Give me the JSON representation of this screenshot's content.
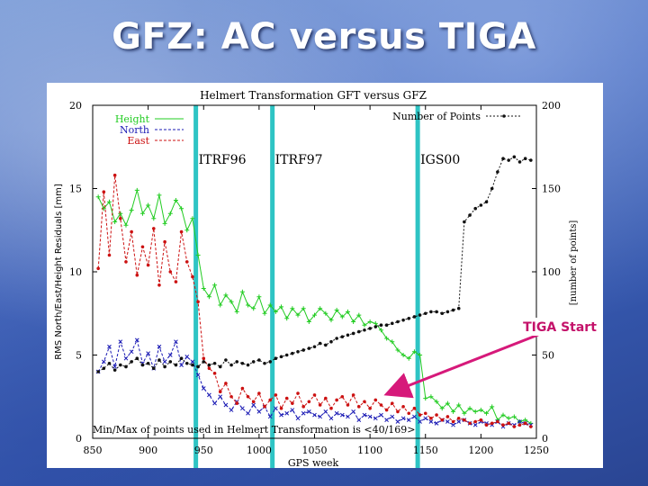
{
  "slide": {
    "title": "GFZ: AC versus TIGA",
    "callout": "TIGA Start"
  },
  "chart_data": {
    "type": "line",
    "title": "Helmert Transformation GFT versus GFZ",
    "xlabel": "GPS week",
    "ylabel": "RMS North/East/Height Residuals [mm]",
    "y2label": "[number of points]",
    "xlim": [
      850,
      1250
    ],
    "ylim": [
      0,
      20
    ],
    "y2lim": [
      0,
      200
    ],
    "xticks": [
      850,
      900,
      950,
      1000,
      1050,
      1100,
      1150,
      1200,
      1250
    ],
    "yticks": [
      0,
      5,
      10,
      15,
      20
    ],
    "ytick_labels": [
      "0",
      "5",
      "10",
      "15",
      "20"
    ],
    "y2ticks": [
      0,
      50,
      100,
      150,
      200
    ],
    "annotation": "Min/Max of points used in Helmert Transformation is <40/169>",
    "frame_markers": [
      {
        "label": "ITRF96",
        "week": 943
      },
      {
        "label": "ITRF97",
        "week": 1012
      },
      {
        "label": "IGS00",
        "week": 1143
      }
    ],
    "tiga_start_week": 1113,
    "series": [
      {
        "name": "Height",
        "color": "#22cc22",
        "marker": "+",
        "x": [
          855,
          860,
          865,
          870,
          875,
          880,
          885,
          890,
          895,
          900,
          905,
          910,
          915,
          920,
          925,
          930,
          935,
          940,
          945,
          950,
          955,
          960,
          965,
          970,
          975,
          980,
          985,
          990,
          995,
          1000,
          1005,
          1010,
          1015,
          1020,
          1025,
          1030,
          1035,
          1040,
          1045,
          1050,
          1055,
          1060,
          1065,
          1070,
          1075,
          1080,
          1085,
          1090,
          1095,
          1100,
          1105,
          1110,
          1115,
          1120,
          1125,
          1130,
          1135,
          1140,
          1145,
          1150,
          1155,
          1160,
          1165,
          1170,
          1175,
          1180,
          1185,
          1190,
          1195,
          1200,
          1205,
          1210,
          1215,
          1220,
          1225,
          1230,
          1235,
          1240,
          1245
        ],
        "y": [
          14.5,
          13.8,
          14.2,
          13.0,
          13.5,
          12.8,
          13.7,
          14.9,
          13.5,
          14.0,
          13.2,
          14.6,
          12.9,
          13.5,
          14.3,
          13.8,
          12.5,
          13.2,
          11.0,
          9.0,
          8.5,
          9.2,
          8.0,
          8.6,
          8.2,
          7.6,
          8.8,
          8.0,
          7.8,
          8.5,
          7.5,
          8.0,
          7.6,
          7.9,
          7.2,
          7.8,
          7.4,
          7.8,
          7.0,
          7.4,
          7.8,
          7.5,
          7.1,
          7.7,
          7.3,
          7.6,
          7.0,
          7.4,
          6.8,
          7.0,
          6.9,
          6.5,
          6.0,
          5.8,
          5.3,
          5.0,
          4.8,
          5.2,
          5.0,
          2.4,
          2.5,
          2.2,
          1.8,
          2.1,
          1.6,
          2.0,
          1.5,
          1.8,
          1.6,
          1.7,
          1.5,
          1.9,
          1.1,
          1.4,
          1.2,
          1.3,
          1.0,
          1.1,
          0.9
        ]
      },
      {
        "name": "North",
        "color": "#1a1ab4",
        "marker": "x",
        "x": [
          855,
          860,
          865,
          870,
          875,
          880,
          885,
          890,
          895,
          900,
          905,
          910,
          915,
          920,
          925,
          930,
          935,
          940,
          945,
          950,
          955,
          960,
          965,
          970,
          975,
          980,
          985,
          990,
          995,
          1000,
          1005,
          1010,
          1015,
          1020,
          1025,
          1030,
          1035,
          1040,
          1045,
          1050,
          1055,
          1060,
          1065,
          1070,
          1075,
          1080,
          1085,
          1090,
          1095,
          1100,
          1105,
          1110,
          1115,
          1120,
          1125,
          1130,
          1135,
          1140,
          1145,
          1150,
          1155,
          1160,
          1165,
          1170,
          1175,
          1180,
          1185,
          1190,
          1195,
          1200,
          1205,
          1210,
          1215,
          1220,
          1225,
          1230,
          1235,
          1240,
          1245
        ],
        "y": [
          4.0,
          4.6,
          5.5,
          4.3,
          5.8,
          4.8,
          5.2,
          5.9,
          4.5,
          5.1,
          4.2,
          5.5,
          4.6,
          5.0,
          5.8,
          4.4,
          4.9,
          4.6,
          3.8,
          3.0,
          2.6,
          2.1,
          2.5,
          2.0,
          1.7,
          2.2,
          1.8,
          1.5,
          2.0,
          1.6,
          1.9,
          1.3,
          1.8,
          1.4,
          1.5,
          1.7,
          1.2,
          1.5,
          1.6,
          1.4,
          1.3,
          1.6,
          1.2,
          1.5,
          1.4,
          1.3,
          1.6,
          1.1,
          1.4,
          1.3,
          1.2,
          1.4,
          1.1,
          1.3,
          1.0,
          1.2,
          1.1,
          1.3,
          1.0,
          1.2,
          1.0,
          0.9,
          1.1,
          1.0,
          0.8,
          1.0,
          1.1,
          0.9,
          0.8,
          1.0,
          0.9,
          0.8,
          1.0,
          0.7,
          0.9,
          0.8,
          1.0,
          0.9,
          0.8
        ]
      },
      {
        "name": "East",
        "color": "#cc1111",
        "marker": "dot",
        "x": [
          855,
          860,
          865,
          870,
          875,
          880,
          885,
          890,
          895,
          900,
          905,
          910,
          915,
          920,
          925,
          930,
          935,
          940,
          945,
          950,
          955,
          960,
          965,
          970,
          975,
          980,
          985,
          990,
          995,
          1000,
          1005,
          1010,
          1015,
          1020,
          1025,
          1030,
          1035,
          1040,
          1045,
          1050,
          1055,
          1060,
          1065,
          1070,
          1075,
          1080,
          1085,
          1090,
          1095,
          1100,
          1105,
          1110,
          1115,
          1120,
          1125,
          1130,
          1135,
          1140,
          1145,
          1150,
          1155,
          1160,
          1165,
          1170,
          1175,
          1180,
          1185,
          1190,
          1195,
          1200,
          1205,
          1210,
          1215,
          1220,
          1225,
          1230,
          1235,
          1240,
          1245
        ],
        "y": [
          10.2,
          14.8,
          11.0,
          15.8,
          13.2,
          10.6,
          12.4,
          9.8,
          11.5,
          10.4,
          12.6,
          9.2,
          11.8,
          10.0,
          9.4,
          12.4,
          10.6,
          9.7,
          8.2,
          4.8,
          4.2,
          3.9,
          2.8,
          3.3,
          2.5,
          2.1,
          3.0,
          2.5,
          2.2,
          2.7,
          1.9,
          2.3,
          2.6,
          1.8,
          2.4,
          2.1,
          2.7,
          1.9,
          2.2,
          2.6,
          2.0,
          2.4,
          1.8,
          2.3,
          2.5,
          2.0,
          2.6,
          1.9,
          2.2,
          1.8,
          2.3,
          2.0,
          1.7,
          2.1,
          1.6,
          1.9,
          1.5,
          1.8,
          1.4,
          1.5,
          1.2,
          1.4,
          1.1,
          1.3,
          1.0,
          1.2,
          1.1,
          0.9,
          1.0,
          1.1,
          0.8,
          0.9,
          1.0,
          0.8,
          0.9,
          0.7,
          0.8,
          0.9,
          0.7
        ]
      },
      {
        "name": "Number of Points",
        "color": "#111111",
        "marker": "dot",
        "axis": "right",
        "x": [
          855,
          860,
          865,
          870,
          875,
          880,
          885,
          890,
          895,
          900,
          905,
          910,
          915,
          920,
          925,
          930,
          935,
          940,
          945,
          950,
          955,
          960,
          965,
          970,
          975,
          980,
          985,
          990,
          995,
          1000,
          1005,
          1010,
          1015,
          1020,
          1025,
          1030,
          1035,
          1040,
          1045,
          1050,
          1055,
          1060,
          1065,
          1070,
          1075,
          1080,
          1085,
          1090,
          1095,
          1100,
          1105,
          1110,
          1115,
          1120,
          1125,
          1130,
          1135,
          1140,
          1145,
          1150,
          1155,
          1160,
          1165,
          1170,
          1175,
          1180,
          1185,
          1190,
          1195,
          1200,
          1205,
          1210,
          1215,
          1220,
          1225,
          1230,
          1235,
          1240,
          1245
        ],
        "y": [
          40,
          42,
          45,
          41,
          44,
          43,
          46,
          48,
          44,
          45,
          42,
          47,
          43,
          46,
          44,
          48,
          45,
          44,
          43,
          46,
          44,
          45,
          43,
          47,
          44,
          46,
          45,
          44,
          46,
          47,
          45,
          46,
          48,
          49,
          50,
          51,
          52,
          53,
          54,
          55,
          57,
          56,
          58,
          60,
          61,
          62,
          63,
          64,
          65,
          66,
          67,
          68,
          68,
          69,
          70,
          71,
          72,
          73,
          74,
          75,
          76,
          76,
          75,
          76,
          77,
          78,
          130,
          134,
          138,
          140,
          142,
          150,
          160,
          168,
          167,
          169,
          166,
          168,
          167
        ]
      }
    ]
  }
}
